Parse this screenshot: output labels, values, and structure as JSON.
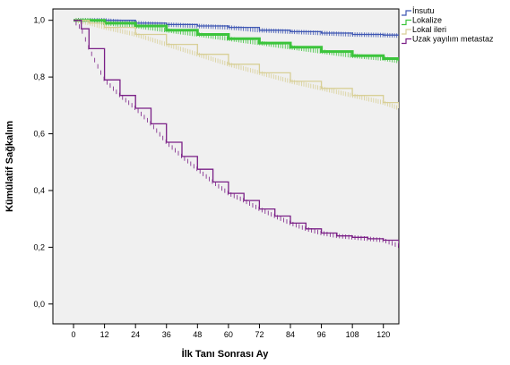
{
  "chart_data": {
    "type": "line",
    "title": "",
    "xlabel": "İlk Tanı Sonrası Ay",
    "ylabel": "Kümülatif Sağkalım",
    "xlim": [
      -8,
      126
    ],
    "ylim": [
      -0.07,
      1.04
    ],
    "xticks": [
      0,
      12,
      24,
      36,
      48,
      60,
      72,
      84,
      96,
      108,
      120
    ],
    "xtick_labels": [
      "0",
      "12",
      "24",
      "36",
      "48",
      "60",
      "72",
      "84",
      "96",
      "108",
      "120"
    ],
    "yticks": [
      0.0,
      0.2,
      0.4,
      0.6,
      0.8,
      1.0
    ],
    "ytick_labels": [
      "0,0",
      "0,2",
      "0,4",
      "0,6",
      "0,8",
      "1,0"
    ],
    "grid": false,
    "legend_position": "top-right",
    "background": "#f0f0f0",
    "series": [
      {
        "name": "İnsutu",
        "color": "#3f57b3",
        "x": [
          0,
          12,
          24,
          36,
          48,
          60,
          72,
          84,
          96,
          108,
          120,
          126
        ],
        "y": [
          1.0,
          1.0,
          0.99,
          0.985,
          0.98,
          0.975,
          0.965,
          0.96,
          0.955,
          0.95,
          0.948,
          0.946
        ]
      },
      {
        "name": "Lokalize",
        "color": "#3cc43c",
        "x": [
          0,
          6,
          12,
          24,
          36,
          48,
          60,
          72,
          84,
          96,
          108,
          120,
          126
        ],
        "y": [
          1.0,
          1.0,
          0.99,
          0.98,
          0.965,
          0.95,
          0.935,
          0.92,
          0.905,
          0.89,
          0.875,
          0.865,
          0.856
        ]
      },
      {
        "name": "Lokal ileri",
        "color": "#d8cf96",
        "x": [
          0,
          6,
          12,
          24,
          36,
          48,
          60,
          72,
          84,
          96,
          108,
          120,
          126
        ],
        "y": [
          1.0,
          0.99,
          0.975,
          0.95,
          0.915,
          0.88,
          0.845,
          0.815,
          0.785,
          0.76,
          0.735,
          0.71,
          0.69
        ]
      },
      {
        "name": "Uzak yayılım metastaz",
        "color": "#7a1f86",
        "x": [
          0,
          3,
          6,
          12,
          18,
          24,
          30,
          36,
          42,
          48,
          54,
          60,
          66,
          72,
          78,
          84,
          90,
          96,
          102,
          108,
          114,
          120,
          126
        ],
        "y": [
          1.0,
          0.97,
          0.9,
          0.79,
          0.735,
          0.69,
          0.635,
          0.57,
          0.52,
          0.475,
          0.43,
          0.39,
          0.365,
          0.335,
          0.31,
          0.285,
          0.265,
          0.25,
          0.24,
          0.235,
          0.23,
          0.225,
          0.205
        ]
      }
    ]
  }
}
